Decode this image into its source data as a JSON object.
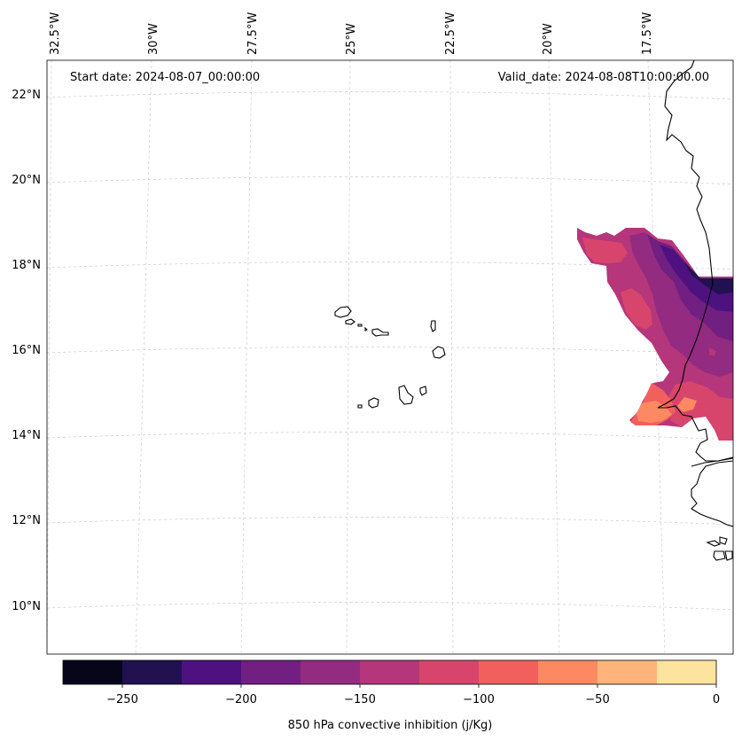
{
  "map": {
    "start_date_label": "Start date: 2024-08-07_00:00:00",
    "valid_date_label": "Valid_date: 2024-08-08T10:00:00.00",
    "lon_labels": [
      "32.5°W",
      "30°W",
      "27.5°W",
      "25°W",
      "22.5°W",
      "20°W",
      "17.5°W"
    ],
    "lat_labels": [
      "22°N",
      "20°N",
      "18°N",
      "16°N",
      "14°N",
      "12°N",
      "10°N"
    ],
    "gridlines": true
  },
  "colorbar": {
    "label": "850 hPa convective inhibition (j/Kg)",
    "tick_labels": [
      "−250",
      "−200",
      "−150",
      "−100",
      "−50",
      "0"
    ],
    "bins": [
      -275,
      -250,
      -225,
      -200,
      -175,
      -150,
      -125,
      -100,
      -75,
      -50,
      -25,
      0
    ],
    "colors": [
      "#06051a",
      "#221150",
      "#4d1180",
      "#711f81",
      "#932b80",
      "#b5367a",
      "#d8456c",
      "#f1605d",
      "#fc8961",
      "#feb47b",
      "#fde49e"
    ]
  }
}
